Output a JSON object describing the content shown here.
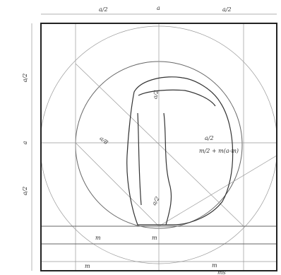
{
  "dimensions": {
    "top": [
      "a/2",
      "a",
      "a/2"
    ],
    "left": [
      "a/2",
      "a",
      "a/2"
    ]
  },
  "annotations": [
    "a/2",
    "a/8",
    "a/2",
    "m/2 + m(a-m)",
    "a/2"
  ],
  "bottom": {
    "row1": [
      "m",
      "m"
    ],
    "row2": [
      "m",
      "m",
      "ms"
    ]
  }
}
